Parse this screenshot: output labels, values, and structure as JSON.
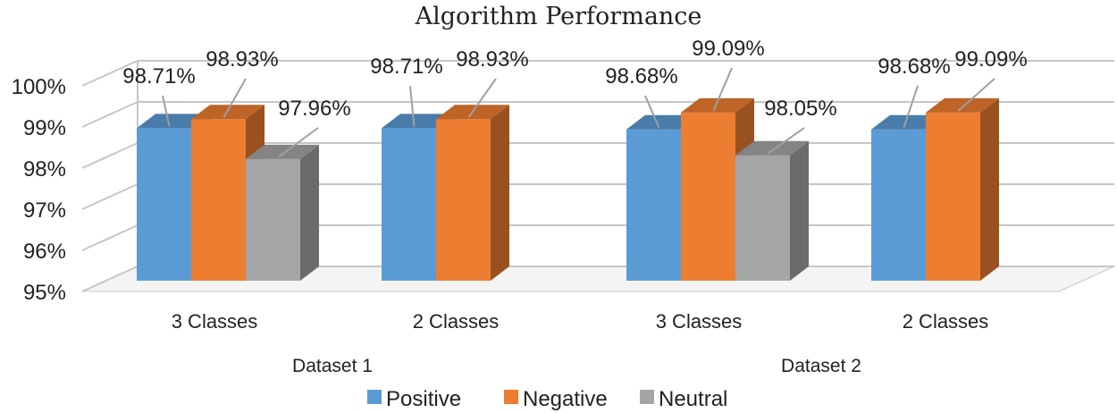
{
  "chart_data": {
    "type": "bar",
    "variant": "3d-clustered-column",
    "title": "Algorithm Performance",
    "xlabel": "",
    "ylabel": "",
    "ylim": [
      95,
      100
    ],
    "y_ticks": [
      "95%",
      "96%",
      "97%",
      "98%",
      "99%",
      "100%"
    ],
    "groups": [
      {
        "label": "Dataset 1",
        "categories": [
          "3 Classes",
          "2 Classes"
        ]
      },
      {
        "label": "Dataset 2",
        "categories": [
          "3 Classes",
          "2 Classes"
        ]
      }
    ],
    "categories": [
      "3 Classes",
      "2 Classes",
      "3 Classes",
      "2 Classes"
    ],
    "series": [
      {
        "name": "Positive",
        "color": "#5b9bd5",
        "values": [
          98.71,
          98.71,
          98.68,
          98.68
        ],
        "labels": [
          "98.71%",
          "98.71%",
          "98.68%",
          "98.68%"
        ]
      },
      {
        "name": "Negative",
        "color": "#ed7d31",
        "values": [
          98.93,
          98.93,
          99.09,
          99.09
        ],
        "labels": [
          "98.93%",
          "98.93%",
          "99.09%",
          "99.09%"
        ]
      },
      {
        "name": "Neutral",
        "color": "#a5a5a5",
        "values": [
          97.96,
          null,
          98.05,
          null
        ],
        "labels": [
          "97.96%",
          null,
          "98.05%",
          null
        ]
      }
    ],
    "grid": true,
    "legend_position": "bottom"
  }
}
